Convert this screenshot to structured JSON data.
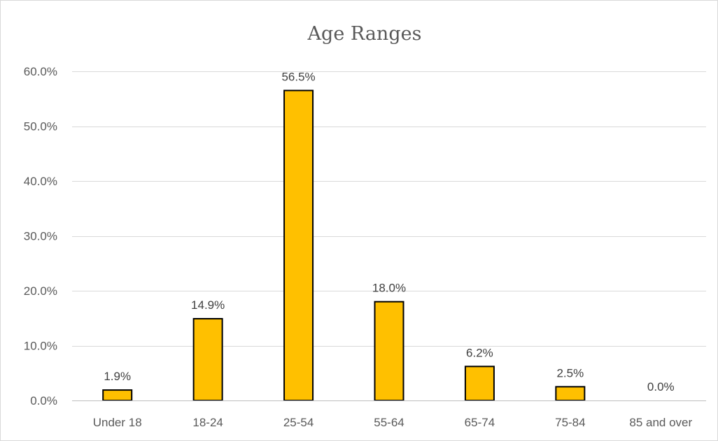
{
  "chart_data": {
    "type": "bar",
    "title": "Age Ranges",
    "xlabel": "",
    "ylabel": "",
    "categories": [
      "Under 18",
      "18-24",
      "25-54",
      "55-64",
      "65-74",
      "75-84",
      "85 and over"
    ],
    "values": [
      1.9,
      14.9,
      56.5,
      18.0,
      6.2,
      2.5,
      0.0
    ],
    "value_labels": [
      "1.9%",
      "14.9%",
      "56.5%",
      "18.0%",
      "6.2%",
      "2.5%",
      "0.0%"
    ],
    "ylim": [
      0,
      60
    ],
    "yticks": [
      0,
      10,
      20,
      30,
      40,
      50,
      60
    ],
    "ytick_labels": [
      "0.0%",
      "10.0%",
      "20.0%",
      "30.0%",
      "40.0%",
      "50.0%",
      "60.0%"
    ],
    "grid": true,
    "legend": "none",
    "colors": {
      "bar_fill": "#ffc000",
      "bar_stroke": "#000000"
    }
  }
}
